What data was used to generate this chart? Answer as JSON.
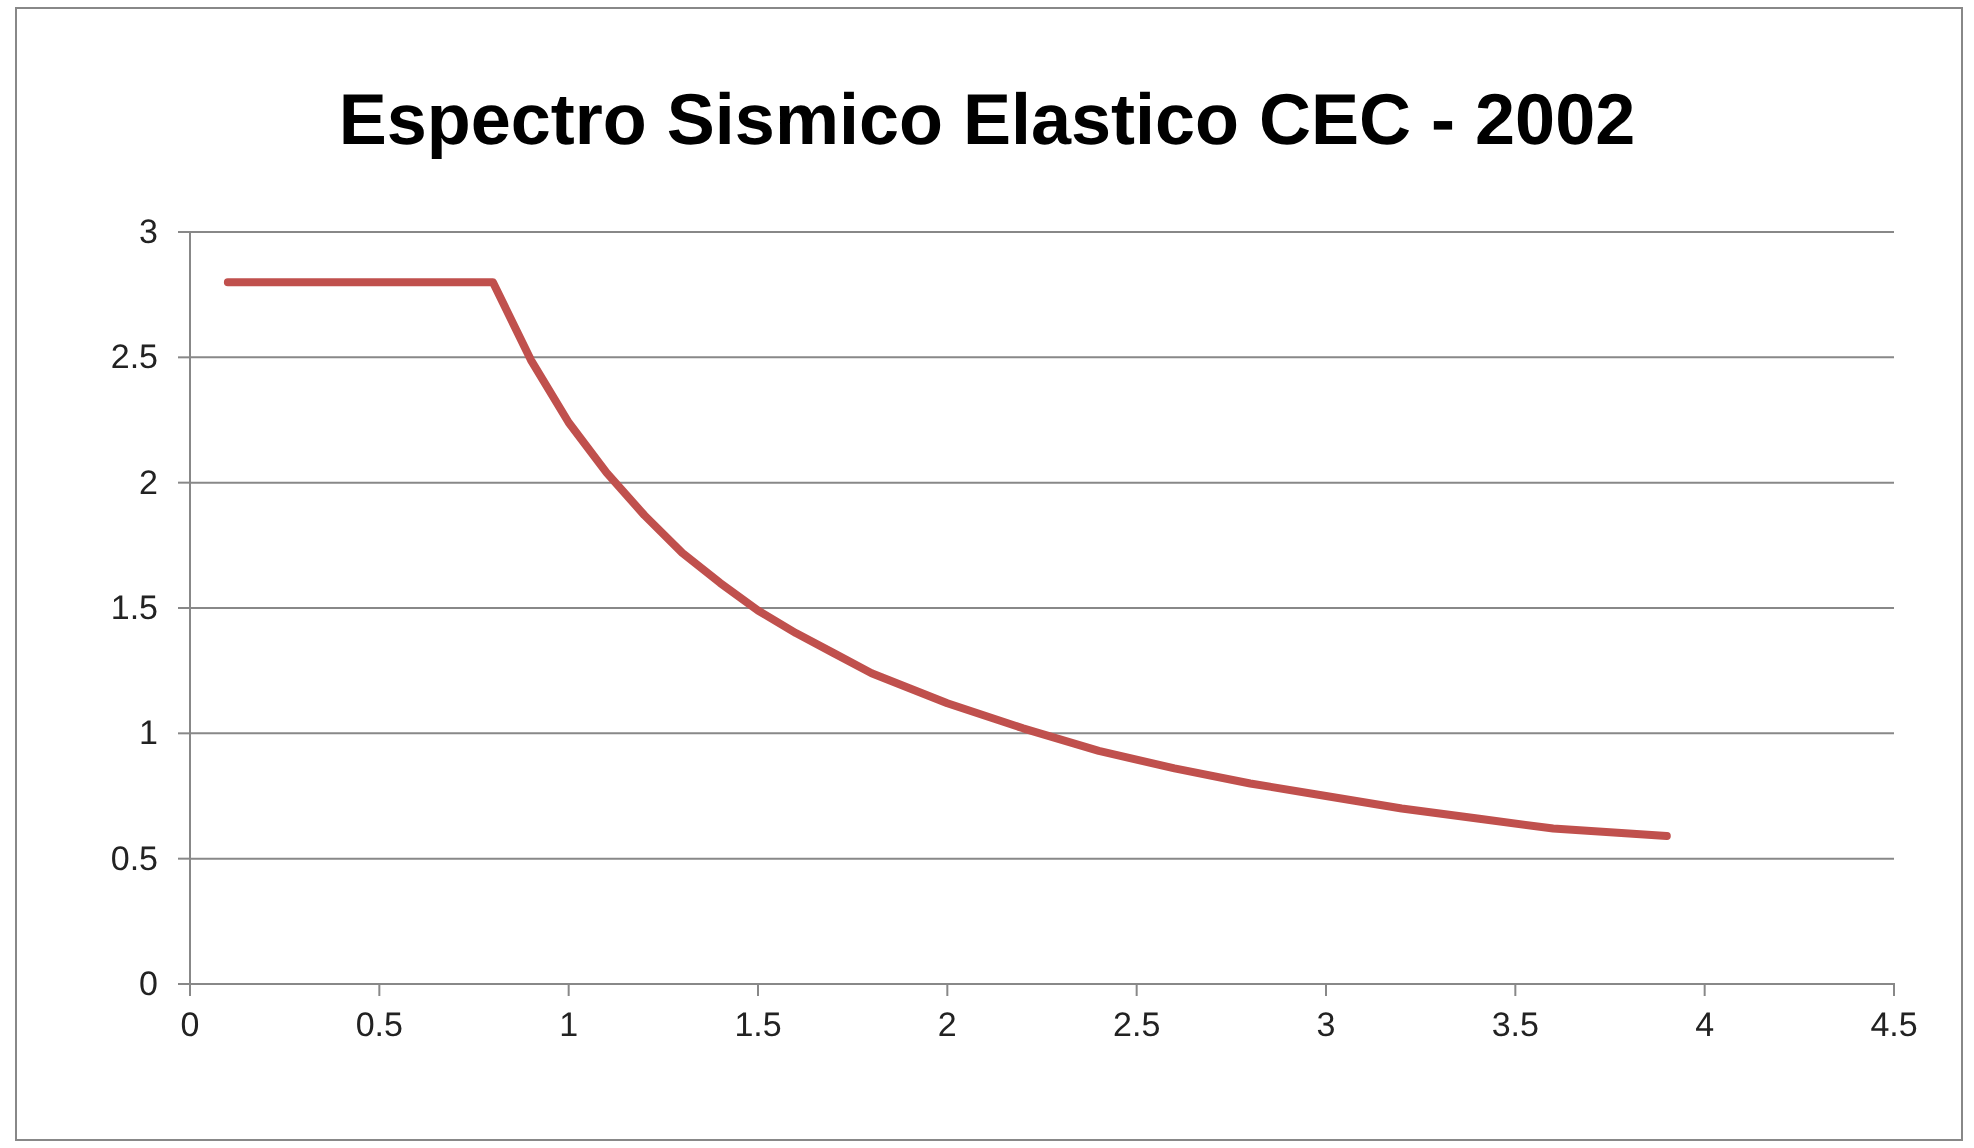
{
  "chart_data": {
    "type": "line",
    "title": "Espectro Sismico Elastico CEC - 2002",
    "x": [
      0.1,
      0.2,
      0.3,
      0.4,
      0.5,
      0.6,
      0.7,
      0.8,
      0.9,
      1.0,
      1.1,
      1.2,
      1.3,
      1.4,
      1.5,
      1.6,
      1.7,
      1.8,
      1.9,
      2.0,
      2.2,
      2.4,
      2.6,
      2.8,
      3.0,
      3.2,
      3.4,
      3.6,
      3.8,
      3.9
    ],
    "series": [
      {
        "color": "#c0504d",
        "values": [
          2.8,
          2.8,
          2.8,
          2.8,
          2.8,
          2.8,
          2.8,
          2.8,
          2.49,
          2.24,
          2.04,
          1.87,
          1.72,
          1.6,
          1.49,
          1.4,
          1.32,
          1.24,
          1.18,
          1.12,
          1.02,
          0.93,
          0.86,
          0.8,
          0.75,
          0.7,
          0.66,
          0.62,
          0.6,
          0.59
        ]
      }
    ],
    "xlim": [
      0,
      4.5
    ],
    "xticks": [
      0,
      0.5,
      1,
      1.5,
      2,
      2.5,
      3,
      3.5,
      4,
      4.5
    ],
    "ylim": [
      0,
      3
    ],
    "yticks": [
      0,
      0.5,
      1,
      1.5,
      2,
      2.5,
      3
    ],
    "grid": "y",
    "marker": "none",
    "line_style": "solid"
  }
}
